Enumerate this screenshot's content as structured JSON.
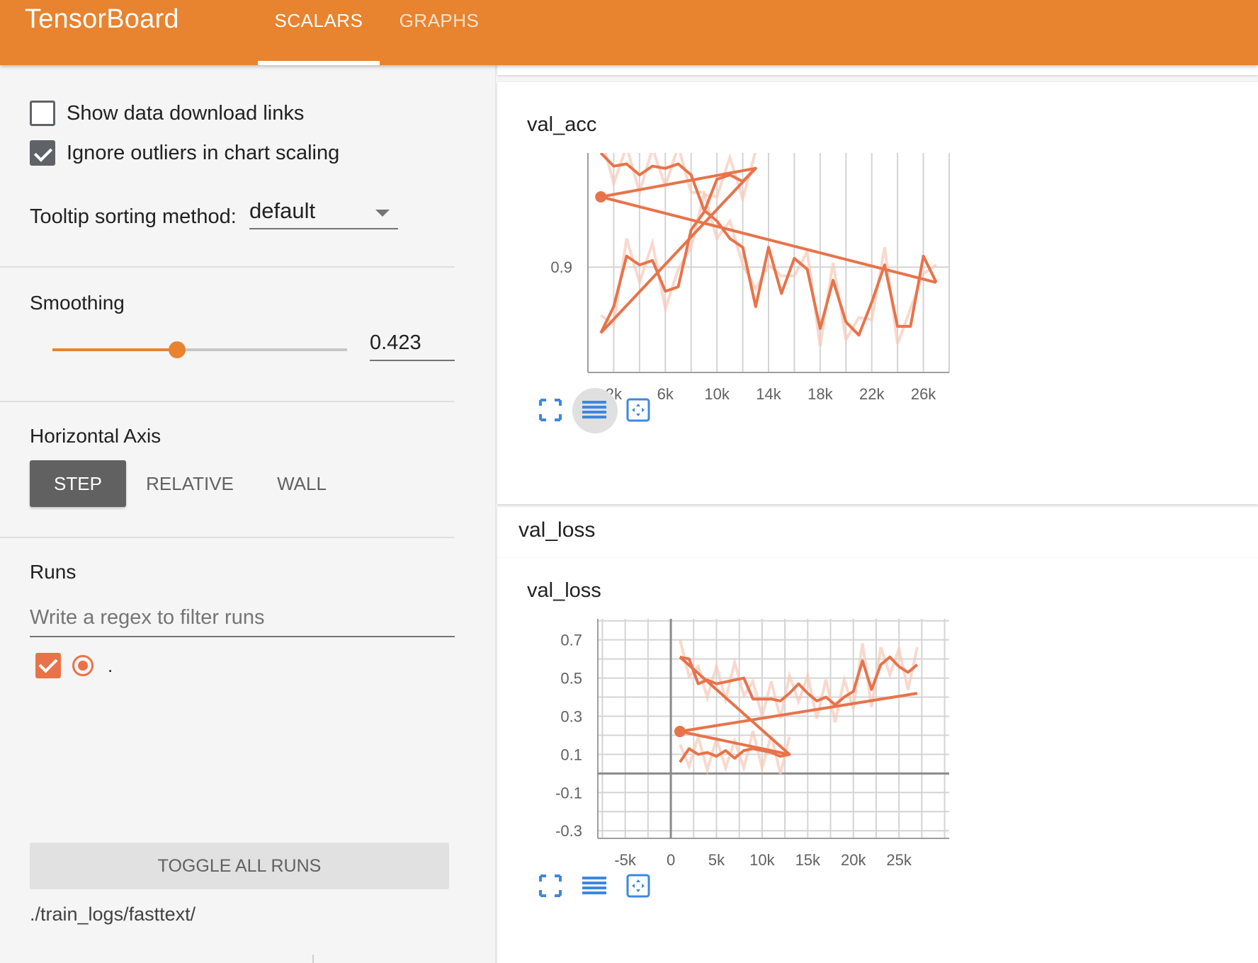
{
  "app": {
    "title": "TensorBoard"
  },
  "tabs": [
    {
      "label": "SCALARS"
    },
    {
      "label": "GRAPHS"
    }
  ],
  "sidebar": {
    "options": {
      "show_download_links": {
        "label": "Show data download links",
        "checked": false
      },
      "ignore_outliers": {
        "label": "Ignore outliers in chart scaling",
        "checked": true
      }
    },
    "tooltip": {
      "label": "Tooltip sorting method:",
      "value": "default"
    },
    "smoothing": {
      "heading": "Smoothing",
      "value": "0.423",
      "level": 0.423
    },
    "horizontal_axis": {
      "heading": "Horizontal Axis",
      "options": [
        "STEP",
        "RELATIVE",
        "WALL"
      ],
      "selected": "STEP"
    },
    "runs": {
      "heading": "Runs",
      "filter_placeholder": "Write a regex to filter runs",
      "items": [
        {
          "name": ".",
          "checked": true,
          "color": "#e8734a"
        }
      ],
      "toggle_label": "TOGGLE ALL RUNS",
      "logdir": "./train_logs/fasttext/"
    }
  },
  "main": {
    "groups": [
      {
        "title": "val_acc",
        "chart_title": "val_acc",
        "chart": {
          "y_ticks": [
            "0.9"
          ],
          "x_ticks": [
            "2k",
            "6k",
            "10k",
            "14k",
            "18k",
            "22k",
            "26k"
          ]
        }
      },
      {
        "title": "val_loss",
        "chart_title": "val_loss",
        "chart": {
          "y_ticks": [
            "0.7",
            "0.5",
            "0.3",
            "0.1",
            "-0.1",
            "-0.3"
          ],
          "x_ticks": [
            "-5k",
            "0",
            "5k",
            "10k",
            "15k",
            "20k",
            "25k"
          ]
        }
      }
    ]
  },
  "chart_data": [
    {
      "type": "line",
      "title": "val_acc",
      "series_color": "#e8734a",
      "xlim": [
        0,
        28000
      ],
      "x_ticks": [
        2000,
        6000,
        10000,
        14000,
        18000,
        22000,
        26000
      ],
      "y_ticks": [
        0.9
      ],
      "ylim": [
        0.852,
        0.952
      ],
      "series": [
        {
          "role": "smoothed",
          "points": [
            [
              1000,
              0.952
            ],
            [
              2000,
              0.946
            ],
            [
              3000,
              0.947
            ],
            [
              4000,
              0.942
            ],
            [
              5000,
              0.946
            ],
            [
              6000,
              0.945
            ],
            [
              7000,
              0.947
            ],
            [
              8000,
              0.942
            ],
            [
              9000,
              0.926
            ],
            [
              10000,
              0.921
            ],
            [
              11000,
              0.913
            ],
            [
              12000,
              0.909
            ],
            [
              13000,
              0.882
            ],
            [
              14000,
              0.909
            ],
            [
              15000,
              0.888
            ],
            [
              16000,
              0.904
            ],
            [
              17000,
              0.899
            ],
            [
              18000,
              0.872
            ],
            [
              19000,
              0.894
            ],
            [
              20000,
              0.875
            ],
            [
              21000,
              0.869
            ],
            [
              22000,
              0.884
            ],
            [
              23000,
              0.901
            ],
            [
              24000,
              0.873
            ],
            [
              25000,
              0.873
            ],
            [
              26000,
              0.905
            ],
            [
              27000,
              0.893
            ]
          ]
        },
        {
          "role": "smoothed-restart",
          "points": [
            [
              1000,
              0.87
            ],
            [
              2000,
              0.882
            ],
            [
              3000,
              0.905
            ],
            [
              4000,
              0.901
            ],
            [
              5000,
              0.903
            ],
            [
              6000,
              0.889
            ],
            [
              7000,
              0.891
            ],
            [
              8000,
              0.917
            ],
            [
              9000,
              0.925
            ],
            [
              10000,
              0.94
            ],
            [
              11000,
              0.942
            ],
            [
              12000,
              0.939
            ],
            [
              13000,
              0.945
            ]
          ]
        },
        {
          "role": "smoothed-trend",
          "points": [
            [
              1000,
              0.87
            ],
            [
              13000,
              0.945
            ],
            [
              1000,
              0.932
            ],
            [
              27000,
              0.893
            ]
          ]
        }
      ]
    },
    {
      "type": "line",
      "title": "val_loss",
      "series_color": "#e8734a",
      "xlim": [
        -8000,
        30500
      ],
      "x_ticks": [
        -5000,
        0,
        5000,
        10000,
        15000,
        20000,
        25000
      ],
      "y_ticks": [
        0.7,
        0.5,
        0.3,
        0.1,
        -0.1,
        -0.3
      ],
      "ylim": [
        -0.34,
        0.81
      ],
      "series": [
        {
          "role": "smoothed",
          "points": [
            [
              1000,
              0.61
            ],
            [
              2000,
              0.6
            ],
            [
              3000,
              0.47
            ],
            [
              4000,
              0.49
            ],
            [
              5000,
              0.47
            ],
            [
              6000,
              0.48
            ],
            [
              7000,
              0.49
            ],
            [
              8000,
              0.5
            ],
            [
              9000,
              0.39
            ],
            [
              10000,
              0.39
            ],
            [
              11000,
              0.39
            ],
            [
              12000,
              0.38
            ],
            [
              13000,
              0.42
            ],
            [
              14000,
              0.47
            ],
            [
              15000,
              0.42
            ],
            [
              16000,
              0.38
            ],
            [
              17000,
              0.4
            ],
            [
              18000,
              0.36
            ],
            [
              19000,
              0.4
            ],
            [
              20000,
              0.43
            ],
            [
              21000,
              0.59
            ],
            [
              22000,
              0.44
            ],
            [
              23000,
              0.57
            ],
            [
              24000,
              0.61
            ],
            [
              25000,
              0.56
            ],
            [
              26000,
              0.53
            ],
            [
              27000,
              0.57
            ]
          ]
        },
        {
          "role": "smoothed-restart",
          "points": [
            [
              1000,
              0.06
            ],
            [
              2000,
              0.13
            ],
            [
              3000,
              0.1
            ],
            [
              4000,
              0.11
            ],
            [
              5000,
              0.09
            ],
            [
              6000,
              0.12
            ],
            [
              7000,
              0.08
            ],
            [
              8000,
              0.12
            ],
            [
              9000,
              0.13
            ],
            [
              10000,
              0.12
            ],
            [
              11000,
              0.11
            ],
            [
              12000,
              0.09
            ],
            [
              13000,
              0.1
            ]
          ]
        },
        {
          "role": "smoothed-trend",
          "points": [
            [
              1000,
              0.61
            ],
            [
              13000,
              0.1
            ],
            [
              1000,
              0.22
            ],
            [
              27000,
              0.42
            ]
          ]
        }
      ]
    }
  ]
}
